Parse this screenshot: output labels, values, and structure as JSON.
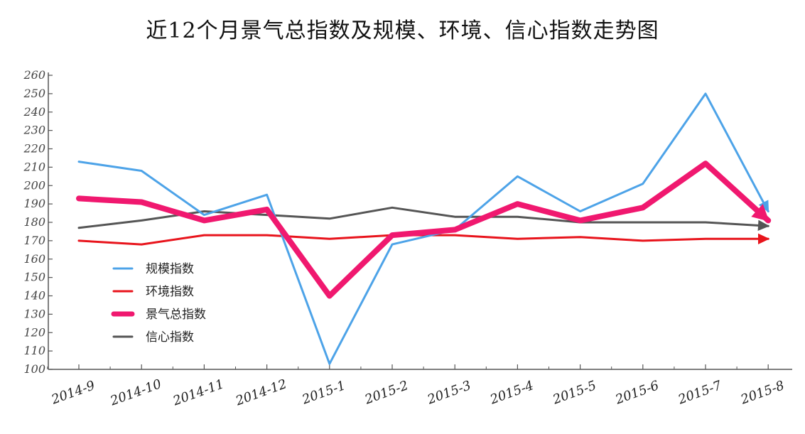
{
  "chart_data": {
    "type": "line",
    "title": "近12个月景气总指数及规模、环境、信心指数走势图",
    "xlabel": "",
    "ylabel": "",
    "ylim": [
      100,
      260
    ],
    "y_ticks": [
      100,
      110,
      120,
      130,
      140,
      150,
      160,
      170,
      180,
      190,
      200,
      210,
      220,
      230,
      240,
      250,
      260
    ],
    "categories": [
      "2014-9",
      "2014-10",
      "2014-11",
      "2014-12",
      "2015-1",
      "2015-2",
      "2015-3",
      "2015-4",
      "2015-5",
      "2015-6",
      "2015-7",
      "2015-8"
    ],
    "legend_position": "left-center",
    "grid": false,
    "series": [
      {
        "name": "规模指数",
        "color": "#4da3e8",
        "width": 3,
        "values": [
          213,
          208,
          184,
          195,
          103,
          168,
          176,
          205,
          186,
          201,
          250,
          186
        ]
      },
      {
        "name": "环境指数",
        "color": "#e8141c",
        "width": 3,
        "values": [
          170,
          168,
          173,
          173,
          171,
          173,
          173,
          171,
          172,
          170,
          171,
          171
        ]
      },
      {
        "name": "景气总指数",
        "color": "#f0186f",
        "width": 8,
        "values": [
          193,
          191,
          181,
          187,
          140,
          173,
          176,
          190,
          181,
          188,
          212,
          181
        ]
      },
      {
        "name": "信心指数",
        "color": "#555555",
        "width": 3,
        "values": [
          177,
          181,
          186,
          184,
          182,
          188,
          183,
          183,
          180,
          180,
          180,
          178
        ]
      }
    ]
  }
}
